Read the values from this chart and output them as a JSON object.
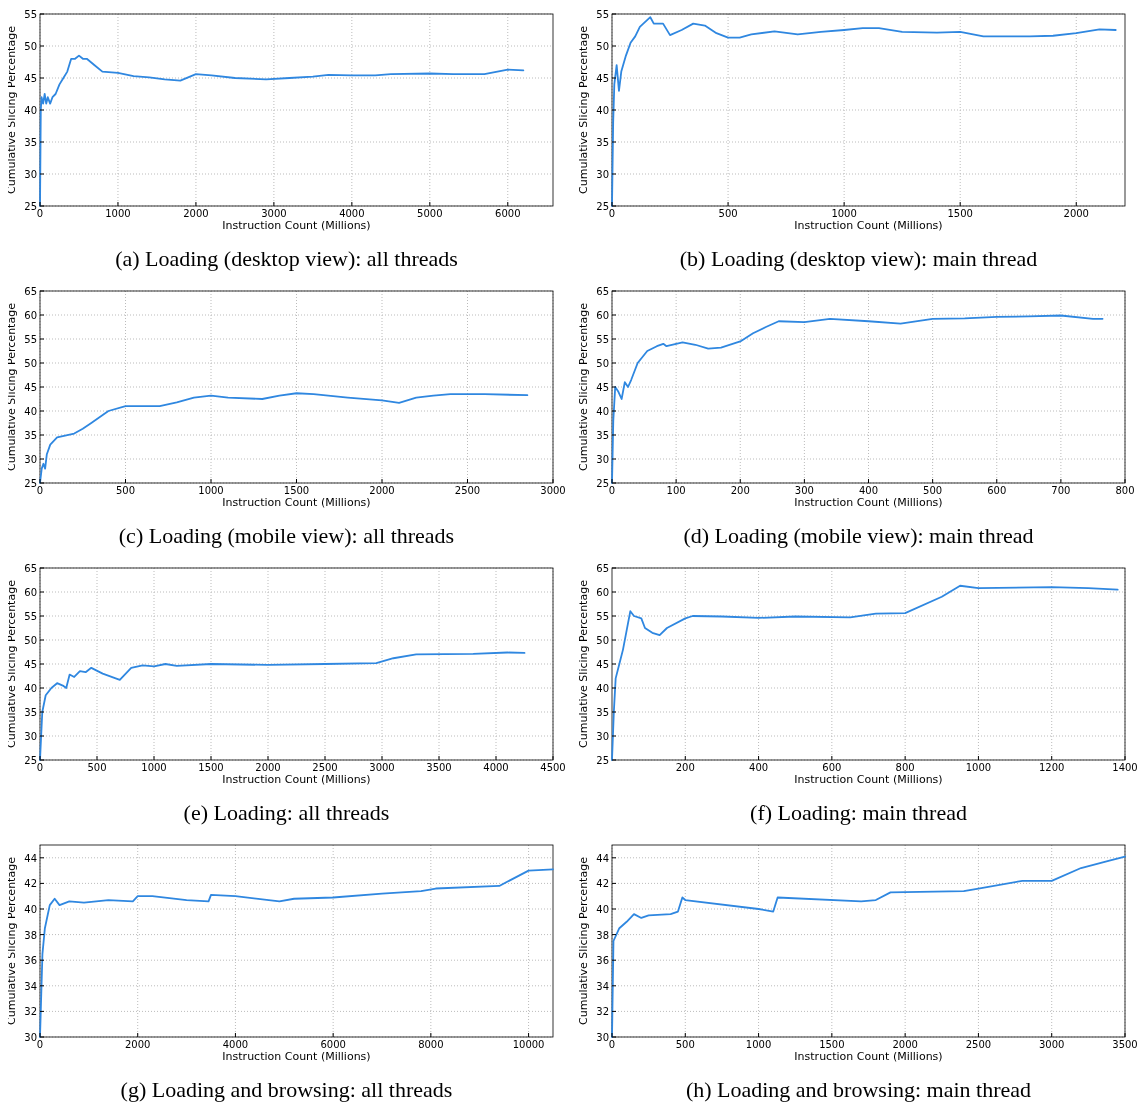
{
  "chart_data": [
    {
      "type": "line",
      "title": "(a) Loading (desktop view): all threads",
      "xlabel": "Instruction Count (Millions)",
      "ylabel": "Cumulative Slicing Percentage",
      "grid": true,
      "xlim": [
        0,
        6580
      ],
      "ylim": [
        25,
        55
      ],
      "xticks": [
        0,
        1000,
        2000,
        3000,
        4000,
        5000,
        6000
      ],
      "yticks": [
        25,
        30,
        35,
        40,
        45,
        50,
        55
      ],
      "series": [
        {
          "color": "#2f87e0",
          "x": [
            0,
            10,
            20,
            40,
            60,
            80,
            100,
            130,
            160,
            200,
            250,
            300,
            350,
            400,
            450,
            500,
            550,
            600,
            700,
            800,
            1000,
            1200,
            1400,
            1600,
            1800,
            2000,
            2200,
            2500,
            2900,
            3200,
            3500,
            3700,
            4000,
            4300,
            4500,
            5000,
            5300,
            5700,
            6000,
            6200
          ],
          "values": [
            25,
            40,
            42,
            41,
            42.5,
            41,
            42,
            41,
            42,
            42.5,
            44,
            45,
            46,
            48,
            48,
            48.5,
            48,
            48,
            47,
            46,
            45.8,
            45.3,
            45.1,
            44.8,
            44.6,
            45.6,
            45.4,
            45,
            44.8,
            45,
            45.2,
            45.5,
            45.4,
            45.4,
            45.6,
            45.7,
            45.6,
            45.6,
            46.3,
            46.2
          ]
        }
      ]
    },
    {
      "type": "line",
      "title": "(b) Loading (desktop view): main thread",
      "xlabel": "Instruction Count (Millions)",
      "ylabel": "Cumulative Slicing Percentage",
      "grid": true,
      "xlim": [
        0,
        2210
      ],
      "ylim": [
        25,
        55
      ],
      "xticks": [
        0,
        500,
        1000,
        1500,
        2000
      ],
      "yticks": [
        25,
        30,
        35,
        40,
        45,
        50,
        55
      ],
      "series": [
        {
          "color": "#2f87e0",
          "x": [
            0,
            5,
            10,
            20,
            30,
            40,
            60,
            80,
            100,
            120,
            150,
            165,
            180,
            220,
            250,
            300,
            350,
            400,
            450,
            500,
            550,
            600,
            700,
            800,
            900,
            1000,
            1080,
            1150,
            1250,
            1400,
            1500,
            1600,
            1800,
            1900,
            2000,
            2100,
            2170
          ],
          "values": [
            25,
            38,
            44,
            47,
            43,
            46,
            48.5,
            50.5,
            51.5,
            53,
            54,
            54.5,
            53.5,
            53.5,
            51.7,
            52.5,
            53.5,
            53.2,
            52,
            51.3,
            51.3,
            51.8,
            52.3,
            51.8,
            52.2,
            52.5,
            52.8,
            52.8,
            52.2,
            52.1,
            52.2,
            51.5,
            51.5,
            51.6,
            52,
            52.6,
            52.5
          ]
        }
      ]
    },
    {
      "type": "line",
      "title": "(c) Loading (mobile view): all threads",
      "xlabel": "Instruction Count (Millions)",
      "ylabel": "Cumulative Slicing Percentage",
      "grid": true,
      "xlim": [
        0,
        3000
      ],
      "ylim": [
        25,
        65
      ],
      "xticks": [
        0,
        500,
        1000,
        1500,
        2000,
        2500,
        3000
      ],
      "yticks": [
        25,
        30,
        35,
        40,
        45,
        50,
        55,
        60,
        65
      ],
      "series": [
        {
          "color": "#2f87e0",
          "x": [
            0,
            10,
            20,
            30,
            40,
            60,
            100,
            200,
            250,
            300,
            400,
            500,
            700,
            800,
            900,
            1000,
            1100,
            1300,
            1400,
            1500,
            1600,
            1800,
            2000,
            2100,
            2200,
            2300,
            2400,
            2600,
            2850
          ],
          "values": [
            25,
            28,
            29,
            28,
            31,
            33,
            34.5,
            35.3,
            36.3,
            37.5,
            40,
            41,
            41,
            41.8,
            42.8,
            43.2,
            42.8,
            42.5,
            43.2,
            43.7,
            43.5,
            42.8,
            42.2,
            41.7,
            42.8,
            43.2,
            43.5,
            43.5,
            43.3
          ]
        }
      ]
    },
    {
      "type": "line",
      "title": "(d) Loading (mobile view): main thread",
      "xlabel": "Instruction Count (Millions)",
      "ylabel": "Cumulative Slicing Percentage",
      "grid": true,
      "xlim": [
        0,
        800
      ],
      "ylim": [
        25,
        65
      ],
      "xticks": [
        0,
        100,
        200,
        300,
        400,
        500,
        600,
        700,
        800
      ],
      "yticks": [
        25,
        30,
        35,
        40,
        45,
        50,
        55,
        60,
        65
      ],
      "series": [
        {
          "color": "#2f87e0",
          "x": [
            0,
            2,
            5,
            10,
            15,
            20,
            25,
            30,
            40,
            55,
            70,
            80,
            85,
            110,
            130,
            150,
            170,
            200,
            220,
            240,
            260,
            300,
            340,
            400,
            450,
            500,
            550,
            600,
            650,
            700,
            750,
            765
          ],
          "values": [
            25,
            38,
            45,
            44,
            42.5,
            46,
            45,
            46.5,
            50,
            52.5,
            53.5,
            54,
            53.5,
            54.3,
            53.8,
            53,
            53.2,
            54.5,
            56.2,
            57.5,
            58.7,
            58.5,
            59.2,
            58.7,
            58.2,
            59.2,
            59.3,
            59.6,
            59.7,
            59.9,
            59.2,
            59.2
          ]
        }
      ]
    },
    {
      "type": "line",
      "title": "(e) Loading: all threads",
      "xlabel": "Instruction Count (Millions)",
      "ylabel": "Cumulative Slicing Percentage",
      "grid": true,
      "xlim": [
        0,
        4500
      ],
      "ylim": [
        25,
        65
      ],
      "xticks": [
        0,
        500,
        1000,
        1500,
        2000,
        2500,
        3000,
        3500,
        4000,
        4500
      ],
      "yticks": [
        25,
        30,
        35,
        40,
        45,
        50,
        55,
        60,
        65
      ],
      "series": [
        {
          "color": "#2f87e0",
          "x": [
            0,
            20,
            50,
            100,
            150,
            200,
            230,
            260,
            300,
            350,
            400,
            450,
            550,
            700,
            800,
            900,
            1000,
            1100,
            1200,
            1500,
            2000,
            2500,
            2950,
            3100,
            3300,
            3800,
            4100,
            4250
          ],
          "values": [
            25,
            35,
            38.5,
            40,
            41,
            40.5,
            40,
            42.8,
            42.3,
            43.5,
            43.3,
            44.2,
            43,
            41.7,
            44.2,
            44.7,
            44.5,
            45,
            44.6,
            45,
            44.8,
            45,
            45.2,
            46.2,
            47,
            47.1,
            47.4,
            47.3
          ]
        }
      ]
    },
    {
      "type": "line",
      "title": "(f) Loading: main thread",
      "xlabel": "Instruction Count (Millions)",
      "ylabel": "Cumulative Slicing Percentage",
      "grid": true,
      "xlim": [
        0,
        1400
      ],
      "ylim": [
        25,
        65
      ],
      "xticks": [
        200,
        400,
        600,
        800,
        1000,
        1200,
        1400
      ],
      "yticks": [
        25,
        30,
        35,
        40,
        45,
        50,
        55,
        60,
        65
      ],
      "series": [
        {
          "color": "#2f87e0",
          "x": [
            0,
            5,
            10,
            20,
            30,
            40,
            50,
            60,
            80,
            90,
            110,
            130,
            150,
            200,
            220,
            300,
            400,
            500,
            650,
            720,
            800,
            900,
            950,
            1000,
            1200,
            1300,
            1380
          ],
          "values": [
            25,
            35,
            42,
            45,
            48,
            52,
            56,
            55,
            54.5,
            52.5,
            51.5,
            51,
            52.5,
            54.5,
            55,
            54.9,
            54.6,
            54.9,
            54.7,
            55.5,
            55.6,
            59,
            61.3,
            60.8,
            61,
            60.8,
            60.5
          ]
        }
      ]
    },
    {
      "type": "line",
      "title": "(g) Loading and browsing: all threads",
      "xlabel": "Instruction Count (Millions)",
      "ylabel": "Cumulative Slicing Percentage",
      "grid": true,
      "xlim": [
        0,
        10500
      ],
      "ylim": [
        30,
        45
      ],
      "xticks": [
        0,
        2000,
        4000,
        6000,
        8000,
        10000
      ],
      "yticks": [
        30,
        32,
        34,
        36,
        38,
        40,
        42,
        44
      ],
      "series": [
        {
          "color": "#2f87e0",
          "x": [
            0,
            50,
            100,
            200,
            300,
            400,
            600,
            900,
            1400,
            1900,
            2000,
            2300,
            3000,
            3450,
            3500,
            4000,
            4900,
            5200,
            6000,
            7000,
            7800,
            8100,
            9400,
            10000,
            10500
          ],
          "values": [
            30,
            36.5,
            38.5,
            40.3,
            40.8,
            40.3,
            40.6,
            40.5,
            40.7,
            40.6,
            41,
            41,
            40.7,
            40.6,
            41.1,
            41,
            40.6,
            40.8,
            40.9,
            41.2,
            41.4,
            41.6,
            41.8,
            43,
            43.1
          ]
        }
      ]
    },
    {
      "type": "line",
      "title": "(h) Loading and browsing: main thread",
      "xlabel": "Instruction Count (Millions)",
      "ylabel": "Cumulative Slicing Percentage",
      "grid": true,
      "xlim": [
        0,
        3500
      ],
      "ylim": [
        30,
        45
      ],
      "xticks": [
        0,
        500,
        1000,
        1500,
        2000,
        2500,
        3000,
        3500
      ],
      "yticks": [
        30,
        32,
        34,
        36,
        38,
        40,
        42,
        44
      ],
      "series": [
        {
          "color": "#2f87e0",
          "x": [
            0,
            10,
            50,
            100,
            150,
            200,
            250,
            400,
            450,
            480,
            500,
            1000,
            1100,
            1130,
            1700,
            1800,
            1900,
            2400,
            2500,
            2800,
            3000,
            3200,
            3400,
            3500
          ],
          "values": [
            30,
            37.5,
            38.5,
            39,
            39.6,
            39.3,
            39.5,
            39.6,
            39.8,
            40.9,
            40.7,
            40,
            39.8,
            40.9,
            40.6,
            40.7,
            41.3,
            41.4,
            41.6,
            42.2,
            42.2,
            43.2,
            43.8,
            44.1
          ]
        }
      ]
    }
  ]
}
